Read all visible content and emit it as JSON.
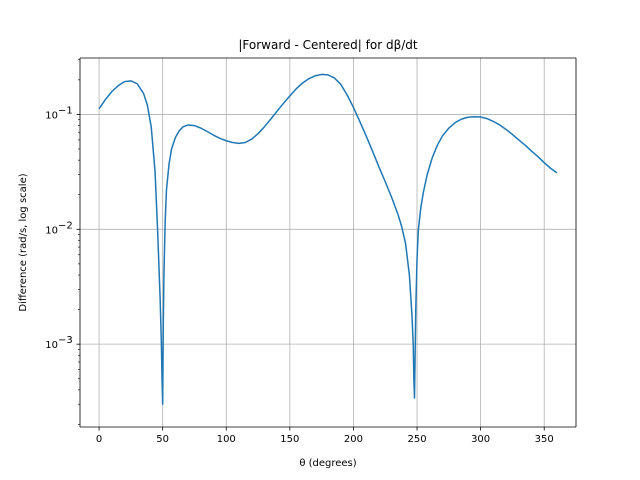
{
  "chart_data": {
    "type": "line",
    "title": "|Forward - Centered| for dβ/dt",
    "xlabel": "θ (degrees)",
    "ylabel": "Difference (rad/s, log scale)",
    "xlim": [
      -15,
      375
    ],
    "ylim": [
      0.00019,
      0.31
    ],
    "yscale": "log",
    "grid": true,
    "x_ticks": [
      0,
      50,
      100,
      150,
      200,
      250,
      300,
      350
    ],
    "x_tick_labels": [
      "0",
      "50",
      "100",
      "150",
      "200",
      "250",
      "300",
      "350"
    ],
    "y_ticks": [
      0.001,
      0.01,
      0.1
    ],
    "y_tick_labels": [
      "10",
      "10",
      "10"
    ],
    "y_tick_exponents": [
      "−3",
      "−2",
      "−1"
    ],
    "series": [
      {
        "color": "#1f77b4",
        "x": [
          0,
          5,
          10,
          15,
          20,
          25,
          30,
          35,
          38,
          41,
          44,
          46,
          47,
          48,
          49,
          49.5,
          50,
          50.5,
          51,
          52,
          53,
          55,
          57,
          60,
          63,
          66,
          70,
          75,
          80,
          85,
          90,
          95,
          100,
          105,
          110,
          115,
          120,
          125,
          130,
          135,
          140,
          145,
          150,
          155,
          160,
          165,
          170,
          175,
          180,
          185,
          190,
          195,
          200,
          205,
          210,
          215,
          220,
          225,
          230,
          235,
          238,
          241,
          244,
          246,
          247,
          247.5,
          248,
          248.5,
          249,
          250,
          251,
          253,
          255,
          258,
          262,
          266,
          270,
          275,
          280,
          285,
          290,
          295,
          300,
          305,
          310,
          315,
          320,
          325,
          330,
          335,
          340,
          345,
          350,
          355,
          360
        ],
        "y": [
          0.112,
          0.135,
          0.158,
          0.178,
          0.193,
          0.196,
          0.185,
          0.152,
          0.12,
          0.078,
          0.032,
          0.01,
          0.005,
          0.0025,
          0.001,
          0.0005,
          0.0003,
          0.0015,
          0.004,
          0.012,
          0.022,
          0.037,
          0.05,
          0.063,
          0.072,
          0.078,
          0.081,
          0.08,
          0.076,
          0.071,
          0.066,
          0.062,
          0.059,
          0.057,
          0.056,
          0.057,
          0.061,
          0.068,
          0.078,
          0.091,
          0.107,
          0.125,
          0.145,
          0.167,
          0.188,
          0.205,
          0.217,
          0.223,
          0.221,
          0.208,
          0.183,
          0.148,
          0.115,
          0.087,
          0.065,
          0.048,
          0.035,
          0.026,
          0.019,
          0.0135,
          0.0105,
          0.0075,
          0.004,
          0.0018,
          0.001,
          0.0005,
          0.00034,
          0.0008,
          0.002,
          0.0055,
          0.0098,
          0.0155,
          0.021,
          0.03,
          0.042,
          0.054,
          0.065,
          0.076,
          0.085,
          0.091,
          0.0945,
          0.0955,
          0.095,
          0.092,
          0.087,
          0.081,
          0.074,
          0.067,
          0.06,
          0.054,
          0.048,
          0.043,
          0.038,
          0.034,
          0.031
        ]
      }
    ]
  }
}
